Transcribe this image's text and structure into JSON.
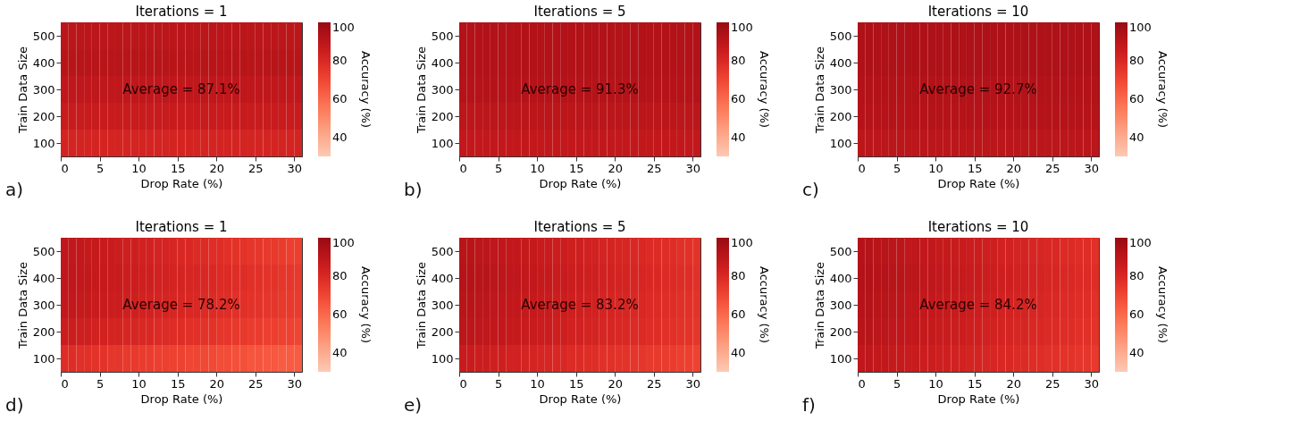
{
  "chart_data": [
    {
      "type": "heatmap",
      "title": "Iterations = 1",
      "xlabel": "Drop Rate (%)",
      "ylabel": "Train Data Size",
      "clabel": "Accuracy (%)",
      "x": [
        0.5,
        1.5,
        2.5,
        3.5,
        4.5,
        5.5,
        6.5,
        7.5,
        8.5,
        9.5,
        10.5,
        11.5,
        12.5,
        13.5,
        14.5,
        15.5,
        16.5,
        17.5,
        18.5,
        19.5,
        20.5,
        21.5,
        22.5,
        23.5,
        24.5,
        25.5,
        26.5,
        27.5,
        28.5,
        29.5,
        30.5
      ],
      "y": [
        500,
        400,
        300,
        200,
        100
      ],
      "xlim": [
        0,
        31
      ],
      "ylim": [
        50,
        550
      ],
      "xticks": [
        0,
        5,
        10,
        15,
        20,
        25,
        30
      ],
      "yticks": [
        100,
        200,
        300,
        400,
        500
      ],
      "clim": [
        30,
        100
      ],
      "cticks": [
        40,
        60,
        80,
        100
      ],
      "cells": [
        [
          90,
          90,
          90,
          90,
          90,
          90,
          90,
          90,
          90,
          90,
          90,
          90,
          90,
          90,
          90,
          90,
          90,
          90,
          90,
          90,
          90,
          90,
          90,
          90,
          90,
          90,
          90,
          90,
          90,
          90,
          90
        ],
        [
          91,
          91,
          91,
          91,
          91,
          91,
          91,
          91,
          91,
          91,
          91,
          91,
          91,
          91,
          91,
          91,
          91,
          91,
          91,
          91,
          91,
          91,
          91,
          91,
          91,
          91,
          91,
          91,
          91,
          91,
          91
        ],
        [
          89,
          89,
          89,
          89,
          89,
          89,
          89,
          89,
          89,
          89,
          89,
          89,
          89,
          89,
          89,
          89,
          89,
          89,
          89,
          89,
          89,
          89,
          89,
          89,
          89,
          89,
          89,
          89,
          89,
          89,
          89
        ],
        [
          86,
          86,
          86,
          86,
          86,
          86,
          86,
          86,
          86,
          86,
          86,
          86,
          86,
          86,
          86,
          86,
          86,
          86,
          86,
          86,
          86,
          86,
          86,
          86,
          86,
          86,
          86,
          86,
          86,
          86,
          86
        ],
        [
          82,
          82,
          82,
          82,
          82,
          82,
          82,
          82,
          82,
          82,
          82,
          82,
          82,
          82,
          82,
          82,
          82,
          82,
          82,
          82,
          82,
          82,
          82,
          82,
          82,
          82,
          82,
          82,
          82,
          82,
          82
        ]
      ],
      "annotations": [
        "Average = 87.1%",
        "a)"
      ]
    },
    {
      "type": "heatmap",
      "title": "Iterations = 5",
      "xlabel": "Drop Rate (%)",
      "ylabel": "Train Data Size",
      "clabel": "Accuracy (%)",
      "x": [
        0.5,
        1.5,
        2.5,
        3.5,
        4.5,
        5.5,
        6.5,
        7.5,
        8.5,
        9.5,
        10.5,
        11.5,
        12.5,
        13.5,
        14.5,
        15.5,
        16.5,
        17.5,
        18.5,
        19.5,
        20.5,
        21.5,
        22.5,
        23.5,
        24.5,
        25.5,
        26.5,
        27.5,
        28.5,
        29.5,
        30.5
      ],
      "y": [
        500,
        400,
        300,
        200,
        100
      ],
      "xlim": [
        0,
        31
      ],
      "ylim": [
        50,
        550
      ],
      "xticks": [
        0,
        5,
        10,
        15,
        20,
        25,
        30
      ],
      "yticks": [
        100,
        200,
        300,
        400,
        500
      ],
      "clim": [
        30,
        100
      ],
      "cticks": [
        40,
        60,
        80,
        100
      ],
      "cells": [
        [
          93,
          93,
          93,
          93,
          93,
          93,
          93,
          93,
          93,
          93,
          93,
          93,
          93,
          93,
          93,
          93,
          93,
          93,
          93,
          93,
          93,
          93,
          93,
          93,
          93,
          93,
          93,
          93,
          93,
          93,
          93
        ],
        [
          93,
          93,
          93,
          93,
          93,
          93,
          93,
          93,
          93,
          93,
          93,
          93,
          93,
          93,
          93,
          93,
          93,
          93,
          93,
          93,
          93,
          93,
          93,
          93,
          93,
          93,
          93,
          93,
          93,
          93,
          93
        ],
        [
          92,
          92,
          92,
          92,
          92,
          92,
          92,
          92,
          92,
          92,
          92,
          92,
          92,
          92,
          92,
          92,
          92,
          92,
          92,
          92,
          92,
          92,
          92,
          92,
          92,
          92,
          92,
          92,
          92,
          92,
          92
        ],
        [
          90,
          90,
          90,
          90,
          90,
          90,
          90,
          90,
          90,
          90,
          90,
          90,
          90,
          90,
          90,
          90,
          90,
          90,
          90,
          90,
          90,
          90,
          90,
          90,
          90,
          90,
          90,
          90,
          90,
          90,
          90
        ],
        [
          88,
          88,
          88,
          88,
          88,
          88,
          88,
          88,
          88,
          88,
          88,
          88,
          88,
          88,
          88,
          88,
          88,
          88,
          88,
          88,
          88,
          88,
          88,
          88,
          88,
          88,
          88,
          88,
          88,
          88,
          88
        ]
      ],
      "annotations": [
        "Average = 91.3%",
        "b)"
      ]
    },
    {
      "type": "heatmap",
      "title": "Iterations = 10",
      "xlabel": "Drop Rate (%)",
      "ylabel": "Train Data Size",
      "clabel": "Accuracy (%)",
      "x": [
        0.5,
        1.5,
        2.5,
        3.5,
        4.5,
        5.5,
        6.5,
        7.5,
        8.5,
        9.5,
        10.5,
        11.5,
        12.5,
        13.5,
        14.5,
        15.5,
        16.5,
        17.5,
        18.5,
        19.5,
        20.5,
        21.5,
        22.5,
        23.5,
        24.5,
        25.5,
        26.5,
        27.5,
        28.5,
        29.5,
        30.5
      ],
      "y": [
        500,
        400,
        300,
        200,
        100
      ],
      "xlim": [
        0,
        31
      ],
      "ylim": [
        50,
        550
      ],
      "xticks": [
        0,
        5,
        10,
        15,
        20,
        25,
        30
      ],
      "yticks": [
        100,
        200,
        300,
        400,
        500
      ],
      "clim": [
        30,
        100
      ],
      "cticks": [
        40,
        60,
        80,
        100
      ],
      "cells": [
        [
          94,
          94,
          94,
          94,
          94,
          94,
          94,
          94,
          94,
          94,
          94,
          94,
          94,
          94,
          94,
          94,
          94,
          94,
          94,
          94,
          94,
          94,
          94,
          94,
          94,
          94,
          94,
          94,
          94,
          94,
          94
        ],
        [
          94,
          94,
          94,
          94,
          94,
          94,
          94,
          94,
          94,
          94,
          94,
          94,
          94,
          94,
          94,
          94,
          94,
          94,
          94,
          94,
          94,
          94,
          94,
          94,
          94,
          94,
          94,
          94,
          94,
          94,
          94
        ],
        [
          93,
          93,
          93,
          93,
          93,
          93,
          93,
          93,
          93,
          93,
          93,
          93,
          93,
          93,
          93,
          93,
          93,
          93,
          93,
          93,
          93,
          93,
          93,
          93,
          93,
          93,
          93,
          93,
          93,
          93,
          93
        ],
        [
          92,
          92,
          92,
          92,
          92,
          92,
          92,
          92,
          92,
          92,
          92,
          92,
          92,
          92,
          92,
          92,
          92,
          92,
          92,
          92,
          92,
          92,
          92,
          92,
          92,
          92,
          92,
          92,
          92,
          92,
          92
        ],
        [
          90,
          90,
          90,
          90,
          90,
          90,
          90,
          90,
          90,
          90,
          90,
          90,
          90,
          90,
          90,
          90,
          90,
          90,
          90,
          90,
          90,
          90,
          90,
          90,
          90,
          90,
          90,
          90,
          90,
          90,
          90
        ]
      ],
      "annotations": [
        "Average = 92.7%",
        "c)"
      ]
    },
    {
      "type": "heatmap",
      "title": "Iterations = 1",
      "xlabel": "Drop Rate (%)",
      "ylabel": "Train Data Size",
      "clabel": "Accuracy (%)",
      "x": [
        0.5,
        1.5,
        2.5,
        3.5,
        4.5,
        5.5,
        6.5,
        7.5,
        8.5,
        9.5,
        10.5,
        11.5,
        12.5,
        13.5,
        14.5,
        15.5,
        16.5,
        17.5,
        18.5,
        19.5,
        20.5,
        21.5,
        22.5,
        23.5,
        24.5,
        25.5,
        26.5,
        27.5,
        28.5,
        29.5,
        30.5
      ],
      "y": [
        500,
        400,
        300,
        200,
        100
      ],
      "xlim": [
        0,
        31
      ],
      "ylim": [
        50,
        550
      ],
      "xticks": [
        0,
        5,
        10,
        15,
        20,
        25,
        30
      ],
      "yticks": [
        100,
        200,
        300,
        400,
        500
      ],
      "clim": [
        30,
        100
      ],
      "cticks": [
        40,
        60,
        80,
        100
      ],
      "cells": [
        [
          89,
          88,
          88,
          87,
          87,
          86,
          86,
          85,
          84,
          84,
          83,
          83,
          82,
          82,
          81,
          80,
          80,
          79,
          79,
          78,
          78,
          77,
          76,
          76,
          75,
          75,
          74,
          74,
          73,
          72,
          72
        ],
        [
          89,
          89,
          88,
          88,
          87,
          87,
          86,
          86,
          85,
          85,
          84,
          84,
          83,
          83,
          82,
          82,
          81,
          81,
          80,
          80,
          79,
          79,
          78,
          78,
          77,
          77,
          76,
          76,
          75,
          75,
          74
        ],
        [
          88,
          88,
          87,
          87,
          86,
          86,
          85,
          85,
          84,
          84,
          83,
          83,
          82,
          82,
          81,
          81,
          80,
          80,
          79,
          79,
          78,
          78,
          77,
          77,
          76,
          76,
          75,
          75,
          74,
          74,
          73
        ],
        [
          85,
          85,
          84,
          84,
          83,
          83,
          82,
          82,
          81,
          81,
          80,
          80,
          79,
          79,
          78,
          78,
          77,
          77,
          76,
          76,
          75,
          75,
          74,
          74,
          73,
          73,
          72,
          72,
          71,
          71,
          70
        ],
        [
          78,
          78,
          77,
          77,
          76,
          76,
          75,
          75,
          74,
          74,
          73,
          73,
          72,
          72,
          71,
          71,
          70,
          70,
          69,
          69,
          68,
          68,
          67,
          67,
          66,
          66,
          65,
          65,
          64,
          64,
          64
        ]
      ],
      "annotations": [
        "Average = 78.2%",
        "d)"
      ]
    },
    {
      "type": "heatmap",
      "title": "Iterations = 5",
      "xlabel": "Drop Rate (%)",
      "ylabel": "Train Data Size",
      "clabel": "Accuracy (%)",
      "x": [
        0.5,
        1.5,
        2.5,
        3.5,
        4.5,
        5.5,
        6.5,
        7.5,
        8.5,
        9.5,
        10.5,
        11.5,
        12.5,
        13.5,
        14.5,
        15.5,
        16.5,
        17.5,
        18.5,
        19.5,
        20.5,
        21.5,
        22.5,
        23.5,
        24.5,
        25.5,
        26.5,
        27.5,
        28.5,
        29.5,
        30.5
      ],
      "y": [
        500,
        400,
        300,
        200,
        100
      ],
      "xlim": [
        0,
        31
      ],
      "ylim": [
        50,
        550
      ],
      "xticks": [
        0,
        5,
        10,
        15,
        20,
        25,
        30
      ],
      "yticks": [
        100,
        200,
        300,
        400,
        500
      ],
      "clim": [
        30,
        100
      ],
      "cticks": [
        40,
        60,
        80,
        100
      ],
      "cells": [
        [
          91,
          91,
          90,
          90,
          89,
          89,
          88,
          88,
          87,
          87,
          86,
          86,
          85,
          85,
          84,
          84,
          83,
          83,
          82,
          82,
          81,
          81,
          80,
          80,
          79,
          79,
          78,
          78,
          77,
          77,
          76
        ],
        [
          92,
          92,
          91,
          91,
          90,
          90,
          89,
          89,
          88,
          88,
          87,
          87,
          86,
          86,
          85,
          85,
          84,
          84,
          83,
          83,
          82,
          82,
          81,
          81,
          80,
          80,
          79,
          79,
          78,
          78,
          77
        ],
        [
          91,
          91,
          90,
          90,
          89,
          89,
          88,
          88,
          87,
          87,
          86,
          86,
          85,
          85,
          84,
          84,
          83,
          83,
          82,
          82,
          81,
          81,
          80,
          80,
          79,
          79,
          78,
          78,
          77,
          77,
          76
        ],
        [
          90,
          90,
          89,
          89,
          88,
          88,
          87,
          87,
          86,
          86,
          85,
          85,
          84,
          84,
          83,
          83,
          82,
          82,
          81,
          81,
          80,
          80,
          79,
          79,
          78,
          78,
          77,
          77,
          76,
          76,
          75
        ],
        [
          86,
          86,
          85,
          85,
          84,
          84,
          83,
          83,
          82,
          82,
          81,
          81,
          80,
          80,
          79,
          79,
          78,
          78,
          77,
          77,
          76,
          76,
          75,
          75,
          74,
          74,
          73,
          73,
          72,
          72,
          71
        ]
      ],
      "annotations": [
        "Average = 83.2%",
        "e)"
      ]
    },
    {
      "type": "heatmap",
      "title": "Iterations = 10",
      "xlabel": "Drop Rate (%)",
      "ylabel": "Train Data Size",
      "clabel": "Accuracy (%)",
      "x": [
        0.5,
        1.5,
        2.5,
        3.5,
        4.5,
        5.5,
        6.5,
        7.5,
        8.5,
        9.5,
        10.5,
        11.5,
        12.5,
        13.5,
        14.5,
        15.5,
        16.5,
        17.5,
        18.5,
        19.5,
        20.5,
        21.5,
        22.5,
        23.5,
        24.5,
        25.5,
        26.5,
        27.5,
        28.5,
        29.5,
        30.5
      ],
      "y": [
        500,
        400,
        300,
        200,
        100
      ],
      "xlim": [
        0,
        31
      ],
      "ylim": [
        50,
        550
      ],
      "xticks": [
        0,
        5,
        10,
        15,
        20,
        25,
        30
      ],
      "yticks": [
        100,
        200,
        300,
        400,
        500
      ],
      "clim": [
        30,
        100
      ],
      "cticks": [
        40,
        60,
        80,
        100
      ],
      "cells": [
        [
          92,
          92,
          91,
          91,
          90,
          90,
          89,
          89,
          88,
          88,
          87,
          87,
          86,
          86,
          85,
          85,
          84,
          84,
          83,
          83,
          82,
          82,
          81,
          81,
          80,
          80,
          79,
          79,
          78,
          78,
          77
        ],
        [
          93,
          93,
          92,
          92,
          91,
          91,
          90,
          90,
          89,
          89,
          88,
          88,
          87,
          87,
          86,
          86,
          85,
          85,
          84,
          84,
          83,
          83,
          82,
          82,
          81,
          81,
          80,
          80,
          79,
          79,
          78
        ],
        [
          92,
          92,
          91,
          91,
          90,
          90,
          89,
          89,
          88,
          88,
          87,
          87,
          86,
          86,
          85,
          85,
          84,
          84,
          83,
          83,
          82,
          82,
          81,
          81,
          80,
          80,
          79,
          79,
          78,
          78,
          77
        ],
        [
          91,
          91,
          90,
          90,
          89,
          89,
          88,
          88,
          87,
          87,
          86,
          86,
          85,
          85,
          84,
          84,
          83,
          83,
          82,
          82,
          81,
          81,
          80,
          80,
          79,
          79,
          78,
          78,
          77,
          77,
          76
        ],
        [
          89,
          89,
          88,
          88,
          87,
          87,
          86,
          86,
          85,
          85,
          84,
          84,
          83,
          83,
          82,
          82,
          81,
          81,
          80,
          80,
          79,
          79,
          78,
          78,
          77,
          77,
          76,
          76,
          75,
          75,
          74
        ]
      ],
      "annotations": [
        "Average = 84.2%",
        "f)"
      ]
    }
  ]
}
